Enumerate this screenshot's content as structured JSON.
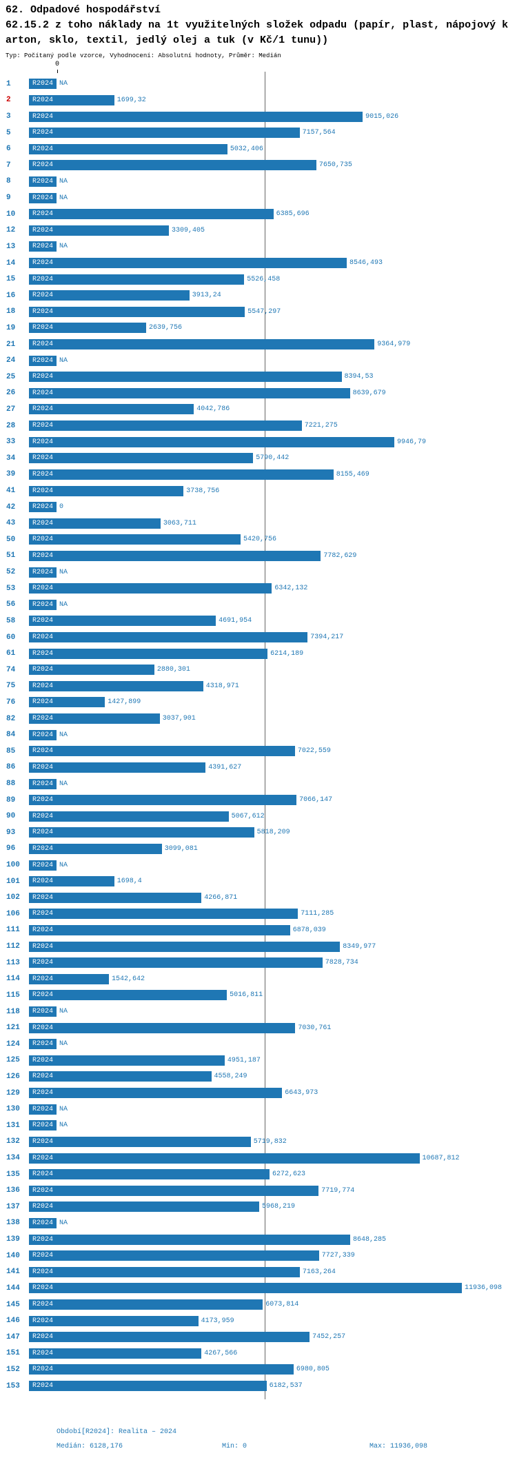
{
  "header": {
    "title": "62. Odpadové hospodářství",
    "subtitle_line1": "62.15.2 z toho náklady na 1t využitelných složek odpadu (papír, plast, nápojový k",
    "subtitle_line2": "arton, sklo, textil, jedlý olej a tuk (v Kč/1 tunu))",
    "meta": "Typ: Počítaný podle vzorce, Vyhodnocení: Absolutní hodnoty, Průměr: Medián"
  },
  "axis": {
    "origin_label": "0"
  },
  "footer": {
    "period": "Období[R2024]: Realita – 2024",
    "median": "Medián: 6128,176",
    "min": "Min: 0",
    "max": "Max: 11936,098"
  },
  "colors": {
    "bar": "#1f77b4",
    "text": "#1f77b4",
    "highlight_row": "#cc0000",
    "median_line": "#666666"
  },
  "chart_data": {
    "type": "bar",
    "orientation": "horizontal",
    "series_name": "R2024",
    "title": "62.15.2 z toho náklady na 1t využitelných složek odpadu (papír, plast, nápojový karton, sklo, textil, jedlý olej a tuk (v Kč/1 tunu))",
    "median": 6128.176,
    "min": 0,
    "max": 11936.098,
    "xlim": [
      0,
      11936.098
    ],
    "rows": [
      {
        "id": "1",
        "label": "NA",
        "value": null
      },
      {
        "id": "2",
        "label": "1699,32",
        "value": 1699.32,
        "highlight": true
      },
      {
        "id": "3",
        "label": "9015,026",
        "value": 9015.026
      },
      {
        "id": "5",
        "label": "7157,564",
        "value": 7157.564
      },
      {
        "id": "6",
        "label": "5032,406",
        "value": 5032.406
      },
      {
        "id": "7",
        "label": "7650,735",
        "value": 7650.735
      },
      {
        "id": "8",
        "label": "NA",
        "value": null
      },
      {
        "id": "9",
        "label": "NA",
        "value": null
      },
      {
        "id": "10",
        "label": "6385,696",
        "value": 6385.696
      },
      {
        "id": "12",
        "label": "3309,405",
        "value": 3309.405
      },
      {
        "id": "13",
        "label": "NA",
        "value": null
      },
      {
        "id": "14",
        "label": "8546,493",
        "value": 8546.493
      },
      {
        "id": "15",
        "label": "5526,458",
        "value": 5526.458
      },
      {
        "id": "16",
        "label": "3913,24",
        "value": 3913.24
      },
      {
        "id": "18",
        "label": "5547,297",
        "value": 5547.297
      },
      {
        "id": "19",
        "label": "2639,756",
        "value": 2639.756
      },
      {
        "id": "21",
        "label": "9364,979",
        "value": 9364.979
      },
      {
        "id": "24",
        "label": "NA",
        "value": null
      },
      {
        "id": "25",
        "label": "8394,53",
        "value": 8394.53
      },
      {
        "id": "26",
        "label": "8639,679",
        "value": 8639.679
      },
      {
        "id": "27",
        "label": "4042,786",
        "value": 4042.786
      },
      {
        "id": "28",
        "label": "7221,275",
        "value": 7221.275
      },
      {
        "id": "33",
        "label": "9946,79",
        "value": 9946.79
      },
      {
        "id": "34",
        "label": "5790,442",
        "value": 5790.442
      },
      {
        "id": "39",
        "label": "8155,469",
        "value": 8155.469
      },
      {
        "id": "41",
        "label": "3738,756",
        "value": 3738.756
      },
      {
        "id": "42",
        "label": "0",
        "value": 0
      },
      {
        "id": "43",
        "label": "3063,711",
        "value": 3063.711
      },
      {
        "id": "50",
        "label": "5420,756",
        "value": 5420.756
      },
      {
        "id": "51",
        "label": "7782,629",
        "value": 7782.629
      },
      {
        "id": "52",
        "label": "NA",
        "value": null
      },
      {
        "id": "53",
        "label": "6342,132",
        "value": 6342.132
      },
      {
        "id": "56",
        "label": "NA",
        "value": null
      },
      {
        "id": "58",
        "label": "4691,954",
        "value": 4691.954
      },
      {
        "id": "60",
        "label": "7394,217",
        "value": 7394.217
      },
      {
        "id": "61",
        "label": "6214,189",
        "value": 6214.189
      },
      {
        "id": "74",
        "label": "2880,301",
        "value": 2880.301
      },
      {
        "id": "75",
        "label": "4318,971",
        "value": 4318.971
      },
      {
        "id": "76",
        "label": "1427,899",
        "value": 1427.899
      },
      {
        "id": "82",
        "label": "3037,901",
        "value": 3037.901
      },
      {
        "id": "84",
        "label": "NA",
        "value": null
      },
      {
        "id": "85",
        "label": "7022,559",
        "value": 7022.559
      },
      {
        "id": "86",
        "label": "4391,627",
        "value": 4391.627
      },
      {
        "id": "88",
        "label": "NA",
        "value": null
      },
      {
        "id": "89",
        "label": "7066,147",
        "value": 7066.147
      },
      {
        "id": "90",
        "label": "5067,612",
        "value": 5067.612
      },
      {
        "id": "93",
        "label": "5818,209",
        "value": 5818.209
      },
      {
        "id": "96",
        "label": "3099,081",
        "value": 3099.081
      },
      {
        "id": "100",
        "label": "NA",
        "value": null
      },
      {
        "id": "101",
        "label": "1698,4",
        "value": 1698.4
      },
      {
        "id": "102",
        "label": "4266,871",
        "value": 4266.871
      },
      {
        "id": "106",
        "label": "7111,285",
        "value": 7111.285
      },
      {
        "id": "111",
        "label": "6878,039",
        "value": 6878.039
      },
      {
        "id": "112",
        "label": "8349,977",
        "value": 8349.977
      },
      {
        "id": "113",
        "label": "7828,734",
        "value": 7828.734
      },
      {
        "id": "114",
        "label": "1542,642",
        "value": 1542.642
      },
      {
        "id": "115",
        "label": "5016,811",
        "value": 5016.811
      },
      {
        "id": "118",
        "label": "NA",
        "value": null
      },
      {
        "id": "121",
        "label": "7030,761",
        "value": 7030.761
      },
      {
        "id": "124",
        "label": "NA",
        "value": null
      },
      {
        "id": "125",
        "label": "4951,187",
        "value": 4951.187
      },
      {
        "id": "126",
        "label": "4558,249",
        "value": 4558.249
      },
      {
        "id": "129",
        "label": "6643,973",
        "value": 6643.973
      },
      {
        "id": "130",
        "label": "NA",
        "value": null
      },
      {
        "id": "131",
        "label": "NA",
        "value": null
      },
      {
        "id": "132",
        "label": "5719,832",
        "value": 5719.832
      },
      {
        "id": "134",
        "label": "10687,812",
        "value": 10687.812
      },
      {
        "id": "135",
        "label": "6272,623",
        "value": 6272.623
      },
      {
        "id": "136",
        "label": "7719,774",
        "value": 7719.774
      },
      {
        "id": "137",
        "label": "5968,219",
        "value": 5968.219
      },
      {
        "id": "138",
        "label": "NA",
        "value": null
      },
      {
        "id": "139",
        "label": "8648,285",
        "value": 8648.285
      },
      {
        "id": "140",
        "label": "7727,339",
        "value": 7727.339
      },
      {
        "id": "141",
        "label": "7163,264",
        "value": 7163.264
      },
      {
        "id": "144",
        "label": "11936,098",
        "value": 11936.098
      },
      {
        "id": "145",
        "label": "6073,814",
        "value": 6073.814
      },
      {
        "id": "146",
        "label": "4173,959",
        "value": 4173.959
      },
      {
        "id": "147",
        "label": "7452,257",
        "value": 7452.257
      },
      {
        "id": "151",
        "label": "4267,566",
        "value": 4267.566
      },
      {
        "id": "152",
        "label": "6980,805",
        "value": 6980.805
      },
      {
        "id": "153",
        "label": "6182,537",
        "value": 6182.537
      }
    ]
  }
}
